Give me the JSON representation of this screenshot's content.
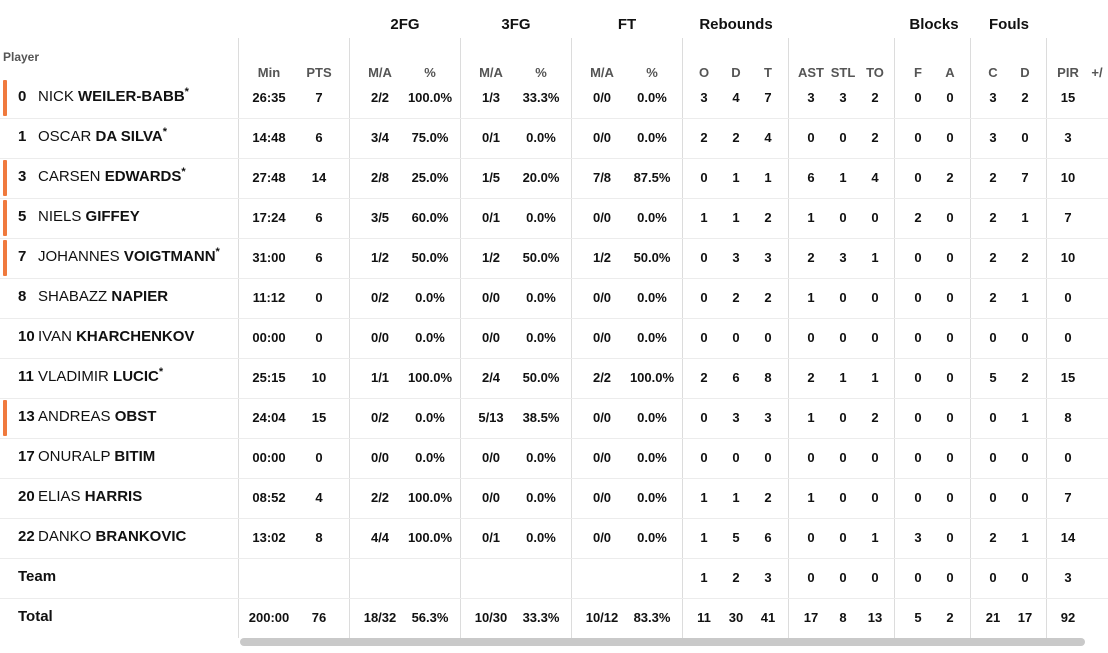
{
  "headers": {
    "player": "Player",
    "groups": {
      "fg2": "2FG",
      "fg3": "3FG",
      "ft": "FT",
      "rebounds": "Rebounds",
      "blocks": "Blocks",
      "fouls": "Fouls"
    },
    "sub": {
      "min": "Min",
      "pts": "PTS",
      "fg2_ma": "M/A",
      "fg2_pct": "%",
      "fg3_ma": "M/A",
      "fg3_pct": "%",
      "ft_ma": "M/A",
      "ft_pct": "%",
      "o": "O",
      "d": "D",
      "t": "T",
      "ast": "AST",
      "stl": "STL",
      "to": "TO",
      "bf": "F",
      "ba": "A",
      "fc": "C",
      "fd": "D",
      "pir": "PIR",
      "pm": "+/"
    }
  },
  "rows": [
    {
      "num": "0",
      "first": "NICK",
      "last": "WEILER-BABB",
      "star": true,
      "bar": true,
      "min": "26:35",
      "pts": "7",
      "fg2_ma": "2/2",
      "fg2_pct": "100.0%",
      "fg3_ma": "1/3",
      "fg3_pct": "33.3%",
      "ft_ma": "0/0",
      "ft_pct": "0.0%",
      "o": "3",
      "d": "4",
      "t": "7",
      "ast": "3",
      "stl": "3",
      "to": "2",
      "bf": "0",
      "ba": "0",
      "fc": "3",
      "fd": "2",
      "pir": "15"
    },
    {
      "num": "1",
      "first": "OSCAR",
      "last": "DA SILVA",
      "star": true,
      "bar": false,
      "min": "14:48",
      "pts": "6",
      "fg2_ma": "3/4",
      "fg2_pct": "75.0%",
      "fg3_ma": "0/1",
      "fg3_pct": "0.0%",
      "ft_ma": "0/0",
      "ft_pct": "0.0%",
      "o": "2",
      "d": "2",
      "t": "4",
      "ast": "0",
      "stl": "0",
      "to": "2",
      "bf": "0",
      "ba": "0",
      "fc": "3",
      "fd": "0",
      "pir": "3"
    },
    {
      "num": "3",
      "first": "CARSEN",
      "last": "EDWARDS",
      "star": true,
      "bar": true,
      "min": "27:48",
      "pts": "14",
      "fg2_ma": "2/8",
      "fg2_pct": "25.0%",
      "fg3_ma": "1/5",
      "fg3_pct": "20.0%",
      "ft_ma": "7/8",
      "ft_pct": "87.5%",
      "o": "0",
      "d": "1",
      "t": "1",
      "ast": "6",
      "stl": "1",
      "to": "4",
      "bf": "0",
      "ba": "2",
      "fc": "2",
      "fd": "7",
      "pir": "10"
    },
    {
      "num": "5",
      "first": "NIELS",
      "last": "GIFFEY",
      "star": false,
      "bar": true,
      "min": "17:24",
      "pts": "6",
      "fg2_ma": "3/5",
      "fg2_pct": "60.0%",
      "fg3_ma": "0/1",
      "fg3_pct": "0.0%",
      "ft_ma": "0/0",
      "ft_pct": "0.0%",
      "o": "1",
      "d": "1",
      "t": "2",
      "ast": "1",
      "stl": "0",
      "to": "0",
      "bf": "2",
      "ba": "0",
      "fc": "2",
      "fd": "1",
      "pir": "7"
    },
    {
      "num": "7",
      "first": "JOHANNES",
      "last": "VOIGTMANN",
      "star": true,
      "bar": true,
      "min": "31:00",
      "pts": "6",
      "fg2_ma": "1/2",
      "fg2_pct": "50.0%",
      "fg3_ma": "1/2",
      "fg3_pct": "50.0%",
      "ft_ma": "1/2",
      "ft_pct": "50.0%",
      "o": "0",
      "d": "3",
      "t": "3",
      "ast": "2",
      "stl": "3",
      "to": "1",
      "bf": "0",
      "ba": "0",
      "fc": "2",
      "fd": "2",
      "pir": "10"
    },
    {
      "num": "8",
      "first": "SHABAZZ",
      "last": "NAPIER",
      "star": false,
      "bar": false,
      "min": "11:12",
      "pts": "0",
      "fg2_ma": "0/2",
      "fg2_pct": "0.0%",
      "fg3_ma": "0/0",
      "fg3_pct": "0.0%",
      "ft_ma": "0/0",
      "ft_pct": "0.0%",
      "o": "0",
      "d": "2",
      "t": "2",
      "ast": "1",
      "stl": "0",
      "to": "0",
      "bf": "0",
      "ba": "0",
      "fc": "2",
      "fd": "1",
      "pir": "0"
    },
    {
      "num": "10",
      "first": "IVAN",
      "last": "KHARCHENKOV",
      "star": false,
      "bar": false,
      "min": "00:00",
      "pts": "0",
      "fg2_ma": "0/0",
      "fg2_pct": "0.0%",
      "fg3_ma": "0/0",
      "fg3_pct": "0.0%",
      "ft_ma": "0/0",
      "ft_pct": "0.0%",
      "o": "0",
      "d": "0",
      "t": "0",
      "ast": "0",
      "stl": "0",
      "to": "0",
      "bf": "0",
      "ba": "0",
      "fc": "0",
      "fd": "0",
      "pir": "0"
    },
    {
      "num": "11",
      "first": "VLADIMIR",
      "last": "LUCIC",
      "star": true,
      "bar": false,
      "min": "25:15",
      "pts": "10",
      "fg2_ma": "1/1",
      "fg2_pct": "100.0%",
      "fg3_ma": "2/4",
      "fg3_pct": "50.0%",
      "ft_ma": "2/2",
      "ft_pct": "100.0%",
      "o": "2",
      "d": "6",
      "t": "8",
      "ast": "2",
      "stl": "1",
      "to": "1",
      "bf": "0",
      "ba": "0",
      "fc": "5",
      "fd": "2",
      "pir": "15"
    },
    {
      "num": "13",
      "first": "ANDREAS",
      "last": "OBST",
      "star": false,
      "bar": true,
      "min": "24:04",
      "pts": "15",
      "fg2_ma": "0/2",
      "fg2_pct": "0.0%",
      "fg3_ma": "5/13",
      "fg3_pct": "38.5%",
      "ft_ma": "0/0",
      "ft_pct": "0.0%",
      "o": "0",
      "d": "3",
      "t": "3",
      "ast": "1",
      "stl": "0",
      "to": "2",
      "bf": "0",
      "ba": "0",
      "fc": "0",
      "fd": "1",
      "pir": "8"
    },
    {
      "num": "17",
      "first": "ONURALP",
      "last": "BITIM",
      "star": false,
      "bar": false,
      "min": "00:00",
      "pts": "0",
      "fg2_ma": "0/0",
      "fg2_pct": "0.0%",
      "fg3_ma": "0/0",
      "fg3_pct": "0.0%",
      "ft_ma": "0/0",
      "ft_pct": "0.0%",
      "o": "0",
      "d": "0",
      "t": "0",
      "ast": "0",
      "stl": "0",
      "to": "0",
      "bf": "0",
      "ba": "0",
      "fc": "0",
      "fd": "0",
      "pir": "0"
    },
    {
      "num": "20",
      "first": "ELIAS",
      "last": "HARRIS",
      "star": false,
      "bar": false,
      "min": "08:52",
      "pts": "4",
      "fg2_ma": "2/2",
      "fg2_pct": "100.0%",
      "fg3_ma": "0/0",
      "fg3_pct": "0.0%",
      "ft_ma": "0/0",
      "ft_pct": "0.0%",
      "o": "1",
      "d": "1",
      "t": "2",
      "ast": "1",
      "stl": "0",
      "to": "0",
      "bf": "0",
      "ba": "0",
      "fc": "0",
      "fd": "0",
      "pir": "7"
    },
    {
      "num": "22",
      "first": "DANKO",
      "last": "BRANKOVIC",
      "star": false,
      "bar": false,
      "min": "13:02",
      "pts": "8",
      "fg2_ma": "4/4",
      "fg2_pct": "100.0%",
      "fg3_ma": "0/1",
      "fg3_pct": "0.0%",
      "ft_ma": "0/0",
      "ft_pct": "0.0%",
      "o": "1",
      "d": "5",
      "t": "6",
      "ast": "0",
      "stl": "0",
      "to": "1",
      "bf": "3",
      "ba": "0",
      "fc": "2",
      "fd": "1",
      "pir": "14"
    },
    {
      "label": "Team",
      "min": "",
      "pts": "",
      "fg2_ma": "",
      "fg2_pct": "",
      "fg3_ma": "",
      "fg3_pct": "",
      "ft_ma": "",
      "ft_pct": "",
      "o": "1",
      "d": "2",
      "t": "3",
      "ast": "0",
      "stl": "0",
      "to": "0",
      "bf": "0",
      "ba": "0",
      "fc": "0",
      "fd": "0",
      "pir": "3"
    },
    {
      "label": "Total",
      "min": "200:00",
      "pts": "76",
      "fg2_ma": "18/32",
      "fg2_pct": "56.3%",
      "fg3_ma": "10/30",
      "fg3_pct": "33.3%",
      "ft_ma": "10/12",
      "ft_pct": "83.3%",
      "o": "11",
      "d": "30",
      "t": "41",
      "ast": "17",
      "stl": "8",
      "to": "13",
      "bf": "5",
      "ba": "2",
      "fc": "21",
      "fd": "17",
      "pir": "92"
    }
  ]
}
